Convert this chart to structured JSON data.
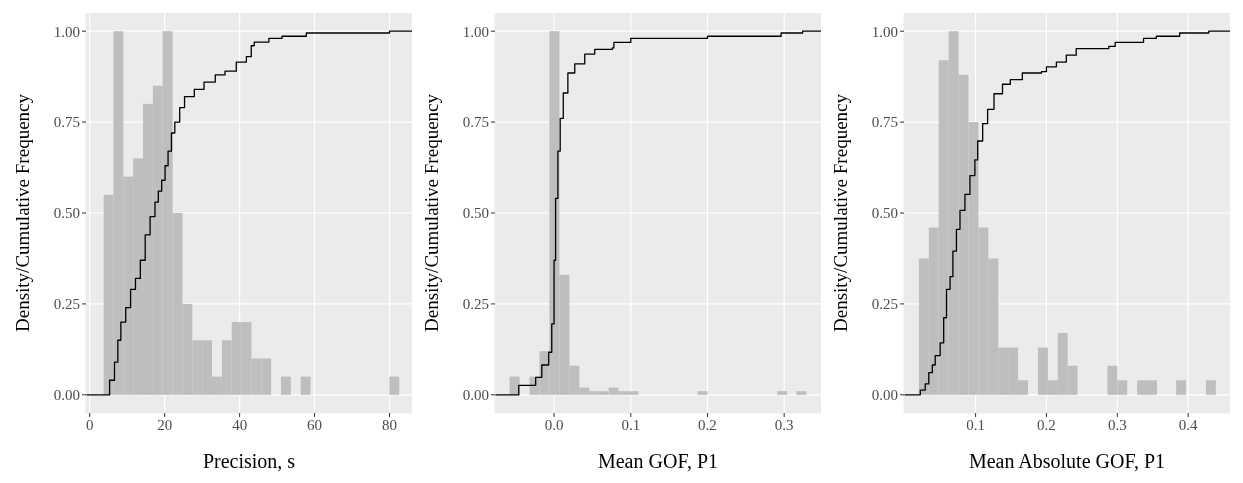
{
  "chart_data": [
    {
      "type": "histogram",
      "xlabel": "Precision, s",
      "ylabel": "Density/Cumulative Frequency",
      "xlim": [
        -1,
        86
      ],
      "ylim": [
        -0.05,
        1.05
      ],
      "xticks": [
        0,
        20,
        40,
        60,
        80
      ],
      "yticks": [
        {
          "value": 0,
          "label": "0.00"
        },
        {
          "value": 0.25,
          "label": "0.25"
        },
        {
          "value": 0.5,
          "label": "0.50"
        },
        {
          "value": 0.75,
          "label": "0.75"
        },
        {
          "value": 1,
          "label": "1.00"
        }
      ],
      "grid": true,
      "series": [
        {
          "type": "histogram",
          "color": "#bebebe",
          "bins": [
            3.7,
            6.33,
            8.96,
            11.59,
            14.22,
            16.85,
            19.48,
            22.11,
            24.74,
            27.37,
            30,
            32.63,
            35.26,
            37.89,
            40.52,
            43.15,
            45.78,
            48.41,
            51.04,
            53.67,
            56.3,
            58.93,
            61.56,
            64.19,
            66.82,
            69.45,
            72.08,
            74.71,
            77.34,
            79.97,
            82.6
          ],
          "values": [
            0.55,
            1,
            0.6,
            0.65,
            0.8,
            0.85,
            1,
            0.5,
            0.25,
            0.15,
            0.15,
            0.05,
            0.15,
            0.2,
            0.2,
            0.1,
            0.1,
            0,
            0.05,
            0,
            0.05,
            0,
            0,
            0,
            0,
            0,
            0,
            0,
            0,
            0.05
          ]
        },
        {
          "type": "step",
          "color": "#000000",
          "x": [
            -1,
            4.2,
            5.3,
            6.6,
            7.5,
            8.3,
            9.6,
            10.9,
            12.2,
            13.5,
            14.8,
            16.1,
            17.4,
            18.3,
            19.2,
            20.1,
            20.9,
            21.8,
            22.7,
            24,
            25.3,
            27.9,
            30.5,
            33.5,
            36.1,
            39.1,
            41.8,
            43.1,
            43.9,
            47.8,
            51.3,
            57.8,
            80,
            86
          ],
          "values": [
            0,
            0,
            0.04,
            0.09,
            0.15,
            0.2,
            0.24,
            0.29,
            0.32,
            0.37,
            0.44,
            0.49,
            0.53,
            0.56,
            0.59,
            0.63,
            0.67,
            0.72,
            0.75,
            0.79,
            0.82,
            0.84,
            0.86,
            0.88,
            0.89,
            0.915,
            0.93,
            0.96,
            0.97,
            0.98,
            0.986,
            0.995,
            1,
            1
          ]
        }
      ]
    },
    {
      "type": "histogram",
      "xlabel": "Mean GOF, P1",
      "ylabel": "Density/Cumulative Frequency",
      "xlim": [
        -0.077,
        0.348
      ],
      "ylim": [
        -0.05,
        1.05
      ],
      "xticks": [
        {
          "value": 0,
          "label": "0.0"
        },
        0.1,
        0.2,
        0.3
      ],
      "yticks": [
        {
          "value": 0,
          "label": "0.00"
        },
        {
          "value": 0.25,
          "label": "0.25"
        },
        {
          "value": 0.5,
          "label": "0.50"
        },
        {
          "value": 0.75,
          "label": "0.75"
        },
        {
          "value": 1,
          "label": "1.00"
        }
      ],
      "grid": true,
      "series": [
        {
          "type": "histogram",
          "color": "#bebebe",
          "bins": [
            -0.058,
            -0.045,
            -0.032,
            -0.019,
            -0.006,
            0.007,
            0.02,
            0.033,
            0.046,
            0.058,
            0.071,
            0.084,
            0.097,
            0.11,
            0.187,
            0.2,
            0.291,
            0.304,
            0.316,
            0.329
          ],
          "values": [
            0.05,
            0,
            0.05,
            0.12,
            1,
            0.33,
            0.08,
            0.02,
            0.01,
            0.01,
            0.02,
            0.01,
            0.01,
            0,
            0.01,
            0,
            0.01,
            0,
            0.01
          ]
        },
        {
          "type": "step",
          "color": "#000000",
          "x": [
            -0.077,
            -0.052,
            -0.046,
            -0.029,
            -0.024,
            -0.016,
            -0.007,
            -0.003,
            0,
            0.002,
            0.005,
            0.008,
            0.012,
            0.018,
            0.027,
            0.04,
            0.053,
            0.076,
            0.078,
            0.1,
            0.2,
            0.296,
            0.324,
            0.348
          ],
          "values": [
            0,
            0,
            0.026,
            0.026,
            0.048,
            0.082,
            0.117,
            0.195,
            0.37,
            0.54,
            0.67,
            0.76,
            0.83,
            0.885,
            0.91,
            0.937,
            0.95,
            0.954,
            0.969,
            0.98,
            0.986,
            0.995,
            1,
            1
          ]
        }
      ]
    },
    {
      "type": "histogram",
      "xlabel": "Mean Absolute GOF, P1",
      "ylabel": "Density/Cumulative Frequency",
      "xlim": [
        -0.001,
        0.459
      ],
      "ylim": [
        -0.05,
        1.05
      ],
      "xticks": [
        0.1,
        0.2,
        0.3,
        0.4
      ],
      "yticks": [
        {
          "value": 0,
          "label": "0.00"
        },
        {
          "value": 0.25,
          "label": "0.25"
        },
        {
          "value": 0.5,
          "label": "0.50"
        },
        {
          "value": 0.75,
          "label": "0.75"
        },
        {
          "value": 1,
          "label": "1.00"
        }
      ],
      "grid": true,
      "series": [
        {
          "type": "histogram",
          "color": "#bebebe",
          "bins": [
            0.02,
            0.034,
            0.048,
            0.062,
            0.076,
            0.09,
            0.104,
            0.118,
            0.132,
            0.146,
            0.16,
            0.174,
            0.188,
            0.202,
            0.216,
            0.23,
            0.244,
            0.286,
            0.3,
            0.314,
            0.328,
            0.342,
            0.356,
            0.383,
            0.397,
            0.425,
            0.439
          ],
          "values": [
            0.375,
            0.46,
            0.92,
            1,
            0.88,
            0.75,
            0.46,
            0.375,
            0.13,
            0.13,
            0.04,
            0,
            0.13,
            0.04,
            0.17,
            0.08,
            0,
            0.08,
            0.04,
            0,
            0.04,
            0.04,
            0,
            0.04,
            0,
            0.04
          ]
        },
        {
          "type": "step",
          "color": "#000000",
          "x": [
            -0.001,
            0.021,
            0.022,
            0.029,
            0.034,
            0.039,
            0.043,
            0.05,
            0.055,
            0.059,
            0.064,
            0.068,
            0.073,
            0.078,
            0.085,
            0.092,
            0.099,
            0.103,
            0.11,
            0.117,
            0.126,
            0.138,
            0.149,
            0.166,
            0.193,
            0.2,
            0.214,
            0.228,
            0.242,
            0.288,
            0.297,
            0.337,
            0.355,
            0.388,
            0.429,
            0.459
          ],
          "values": [
            0,
            0,
            0.013,
            0.03,
            0.061,
            0.082,
            0.108,
            0.143,
            0.212,
            0.29,
            0.325,
            0.395,
            0.455,
            0.507,
            0.551,
            0.603,
            0.646,
            0.698,
            0.746,
            0.785,
            0.828,
            0.854,
            0.867,
            0.885,
            0.889,
            0.902,
            0.915,
            0.934,
            0.952,
            0.958,
            0.969,
            0.98,
            0.986,
            0.995,
            1,
            1
          ]
        }
      ]
    }
  ]
}
